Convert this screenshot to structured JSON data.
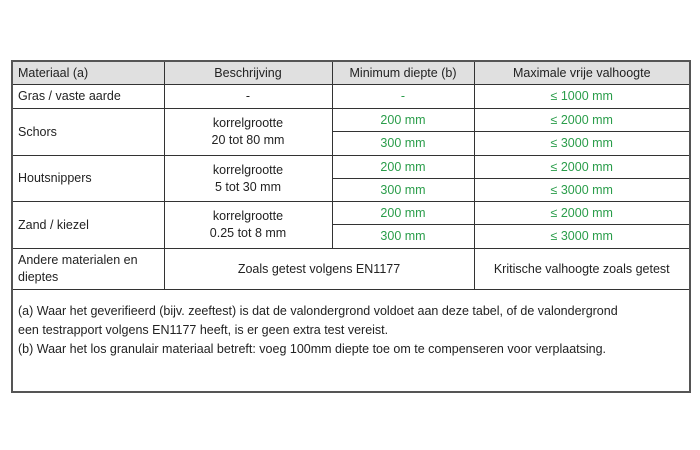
{
  "headers": [
    "Materiaal (a)",
    "Beschrijving",
    "Minimum diepte (b)",
    "Maximale vrije valhoogte"
  ],
  "rows": [
    {
      "material": "Gras / vaste aarde",
      "description": [
        "-"
      ],
      "depths": [
        "-"
      ],
      "heights": [
        "≤ 1000 mm"
      ]
    },
    {
      "material": "Schors",
      "description": [
        "korrelgrootte",
        "20 tot 80 mm"
      ],
      "depths": [
        "200 mm",
        "300 mm"
      ],
      "heights": [
        "≤ 2000 mm",
        "≤ 3000 mm"
      ]
    },
    {
      "material": "Houtsnippers",
      "description": [
        "korrelgrootte",
        "5 tot 30 mm"
      ],
      "depths": [
        "200 mm",
        "300 mm"
      ],
      "heights": [
        "≤ 2000 mm",
        "≤ 3000 mm"
      ]
    },
    {
      "material": "Zand / kiezel",
      "description": [
        "korrelgrootte",
        "0.25 tot 8 mm"
      ],
      "depths": [
        "200 mm",
        "300 mm"
      ],
      "heights": [
        "≤ 2000 mm",
        "≤ 3000 mm"
      ]
    }
  ],
  "other": {
    "material": "Andere materialen en dieptes",
    "description": "Zoals getest volgens EN1177",
    "height": "Kritische valhoogte zoals getest"
  },
  "footnotes": [
    "(a) Waar het geverifieerd (bijv. zeeftest) is dat de valondergrond voldoet aan deze tabel, of de valondergrond een testrapport volgens EN1177 heeft, is er geen extra test vereist.",
    "(b) Waar het los granulair materiaal betreft: voeg 100mm diepte toe om te compenseren voor verplaatsing."
  ],
  "colors": {
    "value_green": "#2a9d4a",
    "header_bg": "#e0e0e0"
  }
}
